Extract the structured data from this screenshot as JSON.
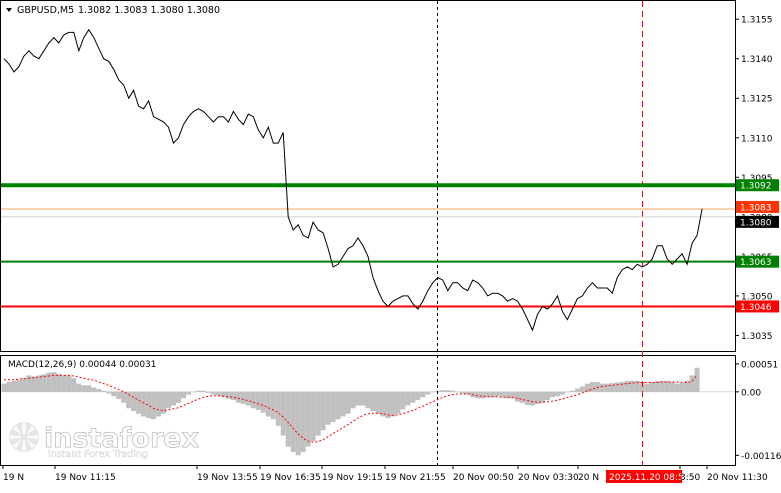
{
  "header": {
    "symbol_label": "GBPUSD,M5",
    "ohlc_label": "1.3082 1.3083 1.3080 1.3080"
  },
  "macd_panel": {
    "label": "MACD(12,26,9) 0.00044 0.00031",
    "axis_labels": [
      "0.00051",
      "0.00",
      "-0.00116"
    ]
  },
  "watermark": {
    "brand": "instaforex",
    "tagline": "Instant Forex Trading"
  },
  "colors": {
    "price_line": "#000000",
    "green_level": "#008000",
    "red_level": "#ff0000",
    "current_line": "#f4a460",
    "current_label_bg": "#ff3300",
    "bid_label_bg": "#000000",
    "histogram": "#c0c0c0",
    "signal_line": "#ff0000",
    "vline": "#000000",
    "vline_red": "#ff0000"
  },
  "chart_data": {
    "type": "line",
    "symbol": "GBPUSD",
    "timeframe": "M5",
    "y_axis_labels": [
      "1.3155",
      "1.3140",
      "1.3125",
      "1.3110",
      "1.3095",
      "1.3080",
      "1.3065",
      "1.3050",
      "1.3035"
    ],
    "ylim": [
      1.3031,
      1.316
    ],
    "x_tick_labels": [
      "19 N",
      "19 Nov 11:15",
      "19 Nov 13:55",
      "19 Nov 16:35",
      "19 Nov 19:15",
      "19 Nov 21:55",
      "20 Nov 00:50",
      "20 Nov 03:30",
      "20 N",
      "2025.11.20 08:50",
      "3:50",
      "20 Nov 11:30"
    ],
    "levels": [
      {
        "price": 1.3092,
        "label": "1.3092",
        "kind": "resistance",
        "color": "#008000"
      },
      {
        "price": 1.3063,
        "label": "1.3063",
        "kind": "support",
        "color": "#008000"
      },
      {
        "price": 1.3046,
        "label": "1.3046",
        "kind": "red",
        "color": "#ff0000"
      }
    ],
    "price_labels": [
      {
        "price": 1.3083,
        "label": "1.3083",
        "kind": "ask"
      },
      {
        "price": 1.308,
        "label": "1.3080",
        "kind": "bid"
      }
    ],
    "x": [
      0,
      5,
      10,
      15,
      20,
      25,
      30,
      35,
      40,
      45,
      50,
      55,
      60,
      65,
      70,
      75,
      80,
      85,
      90,
      95,
      100,
      105,
      110,
      115,
      120,
      125,
      130,
      135,
      140,
      145,
      150,
      155,
      160,
      165,
      170,
      175,
      180,
      185,
      190,
      195,
      200,
      205,
      210,
      215,
      220,
      225,
      230,
      235,
      240,
      245,
      250,
      255,
      260,
      265,
      270,
      275,
      280,
      285,
      290,
      295,
      300,
      305,
      310,
      315,
      320,
      325,
      330,
      335,
      340,
      345,
      350,
      355,
      360,
      365,
      370,
      375,
      380,
      385,
      390,
      395,
      400,
      405,
      410,
      415,
      420,
      425,
      430,
      435,
      440,
      445,
      450,
      455,
      460,
      465,
      470,
      475,
      480,
      485,
      490,
      495,
      500,
      505,
      510,
      515,
      520,
      525,
      530,
      535,
      540,
      545,
      550,
      555,
      560,
      565,
      570,
      575,
      580,
      585,
      590,
      595,
      600,
      605,
      610,
      615,
      620,
      625,
      630,
      635,
      640,
      645,
      650,
      655,
      660,
      665,
      670,
      675,
      680,
      685,
      690,
      695,
      700,
      705,
      710,
      715,
      720,
      725
    ],
    "price": [
      1.314,
      1.3138,
      1.3135,
      1.3137,
      1.3141,
      1.3143,
      1.3141,
      1.314,
      1.3143,
      1.3146,
      1.3148,
      1.3146,
      1.3149,
      1.315,
      1.315,
      1.3143,
      1.3148,
      1.3151,
      1.3148,
      1.3144,
      1.314,
      1.3139,
      1.3136,
      1.3132,
      1.313,
      1.3125,
      1.3128,
      1.3122,
      1.3121,
      1.3124,
      1.3118,
      1.3117,
      1.3116,
      1.3114,
      1.3108,
      1.311,
      1.3115,
      1.3118,
      1.312,
      1.3121,
      1.312,
      1.3118,
      1.3116,
      1.3118,
      1.3118,
      1.3116,
      1.312,
      1.3117,
      1.3115,
      1.3119,
      1.3118,
      1.3113,
      1.311,
      1.3114,
      1.3108,
      1.3108,
      1.3112,
      1.308,
      1.3075,
      1.3077,
      1.3073,
      1.3072,
      1.3078,
      1.3075,
      1.3074,
      1.3068,
      1.3061,
      1.3062,
      1.3065,
      1.3068,
      1.3069,
      1.3072,
      1.3069,
      1.3065,
      1.3057,
      1.3052,
      1.3048,
      1.3046,
      1.3048,
      1.3049,
      1.305,
      1.305,
      1.3047,
      1.3045,
      1.3048,
      1.3052,
      1.3055,
      1.3057,
      1.3056,
      1.3052,
      1.3055,
      1.3055,
      1.3053,
      1.3052,
      1.3056,
      1.3055,
      1.3053,
      1.305,
      1.3051,
      1.3051,
      1.305,
      1.3048,
      1.3049,
      1.3048,
      1.3045,
      1.3041,
      1.3037,
      1.3043,
      1.3046,
      1.3045,
      1.3047,
      1.305,
      1.3044,
      1.3041,
      1.3045,
      1.3049,
      1.305,
      1.3053,
      1.3055,
      1.3053,
      1.3053,
      1.3053,
      1.3051,
      1.3057,
      1.306,
      1.3061,
      1.306,
      1.3062,
      1.3061,
      1.3062,
      1.3064,
      1.3069,
      1.3069,
      1.3064,
      1.3062,
      1.3064,
      1.3066,
      1.3062,
      1.307,
      1.3073,
      1.3083
    ],
    "macd_ylim": [
      -0.0013,
      0.0006
    ],
    "macd_hist": [
      0.00015,
      0.00018,
      0.0002,
      0.00022,
      0.00025,
      0.0003,
      0.00028,
      0.0003,
      0.00032,
      0.00035,
      0.00036,
      0.00033,
      0.0003,
      0.0003,
      0.00025,
      0.00015,
      0.00012,
      0.00012,
      8e-05,
      5e-05,
      2e-05,
      -3e-05,
      -8e-05,
      -0.00013,
      -0.0002,
      -0.0003,
      -0.00035,
      -0.0004,
      -0.00045,
      -0.00048,
      -0.0005,
      -0.00045,
      -0.0004,
      -0.0003,
      -0.00025,
      -0.0002,
      -0.00012,
      -5e-05,
      0.0,
      2e-05,
      2e-05,
      -2e-05,
      -5e-05,
      -7e-05,
      -0.0001,
      -0.00013,
      -0.00015,
      -0.0002,
      -0.00022,
      -0.00025,
      -0.0003,
      -0.00033,
      -0.00038,
      -0.00045,
      -0.0005,
      -0.00062,
      -0.0008,
      -0.001,
      -0.0011,
      -0.00116,
      -0.0011,
      -0.001,
      -0.0009,
      -0.0008,
      -0.0007,
      -0.0006,
      -0.00055,
      -0.0005,
      -0.00045,
      -0.0004,
      -0.0003,
      -0.00025,
      -0.00025,
      -0.0003,
      -0.00035,
      -0.0004,
      -0.00045,
      -0.00048,
      -0.00045,
      -0.0004,
      -0.00032,
      -0.00025,
      -0.0002,
      -0.00015,
      -0.0001,
      -5e-05,
      0.0,
      2e-05,
      3e-05,
      3e-05,
      2e-05,
      0.0,
      -3e-05,
      -5e-05,
      -0.0001,
      -0.00012,
      -0.00012,
      -0.0001,
      -0.0001,
      -8e-05,
      -0.0001,
      -0.00012,
      -0.00012,
      -0.00018,
      -0.0002,
      -0.00024,
      -0.00025,
      -0.00022,
      -0.0002,
      -0.00015,
      -0.0001,
      -8e-05,
      -5e-05,
      0.0,
      2e-05,
      6e-05,
      0.0001,
      0.00015,
      0.00018,
      0.00018,
      0.00015,
      0.00015,
      0.00016,
      0.00017,
      0.00018,
      0.0002,
      0.0002,
      0.0002,
      0.00018,
      0.00015,
      0.00018,
      0.0002,
      0.0002,
      0.0002,
      0.00018,
      0.00015,
      0.00016,
      0.0002,
      0.0003,
      0.00044
    ],
    "macd_signal": [
      0.00022,
      0.00022,
      0.00022,
      0.00023,
      0.00024,
      0.00025,
      0.00026,
      0.00027,
      0.00028,
      0.00029,
      0.0003,
      0.0003,
      0.0003,
      0.0003,
      0.00029,
      0.00027,
      0.00025,
      0.00023,
      0.00021,
      0.00018,
      0.00015,
      0.00012,
      8e-05,
      4e-05,
      0.0,
      -5e-05,
      -0.0001,
      -0.00015,
      -0.0002,
      -0.00025,
      -0.0003,
      -0.00033,
      -0.00034,
      -0.00033,
      -0.00031,
      -0.00029,
      -0.00025,
      -0.00021,
      -0.00017,
      -0.00013,
      -0.0001,
      -8e-05,
      -7e-05,
      -7e-05,
      -8e-05,
      -9e-05,
      -0.0001,
      -0.00012,
      -0.00014,
      -0.00016,
      -0.00019,
      -0.00022,
      -0.00025,
      -0.00029,
      -0.00033,
      -0.00038,
      -0.00046,
      -0.00056,
      -0.00067,
      -0.00077,
      -0.00085,
      -0.0009,
      -0.00092,
      -0.00091,
      -0.00087,
      -0.00082,
      -0.00076,
      -0.00071,
      -0.00065,
      -0.0006,
      -0.00054,
      -0.00048,
      -0.00043,
      -0.0004,
      -0.00039,
      -0.00039,
      -0.0004,
      -0.00042,
      -0.00043,
      -0.00042,
      -0.0004,
      -0.00037,
      -0.00034,
      -0.0003,
      -0.00026,
      -0.00022,
      -0.00018,
      -0.00014,
      -0.0001,
      -7e-05,
      -5e-05,
      -4e-05,
      -4e-05,
      -4e-05,
      -5e-05,
      -7e-05,
      -8e-05,
      -9e-05,
      -9e-05,
      -9e-05,
      -0.0001,
      -0.0001,
      -0.0001,
      -0.00012,
      -0.00014,
      -0.00016,
      -0.00018,
      -0.00019,
      -0.00019,
      -0.00018,
      -0.00017,
      -0.00015,
      -0.00013,
      -0.0001,
      -8e-05,
      -5e-05,
      -2e-05,
      2e-05,
      5e-05,
      8e-05,
      0.0001,
      0.00011,
      0.00012,
      0.00013,
      0.00014,
      0.00015,
      0.00016,
      0.00017,
      0.00017,
      0.00017,
      0.00017,
      0.00017,
      0.00018,
      0.00018,
      0.00018,
      0.00018,
      0.00017,
      0.00017,
      0.00019,
      0.00031
    ]
  }
}
